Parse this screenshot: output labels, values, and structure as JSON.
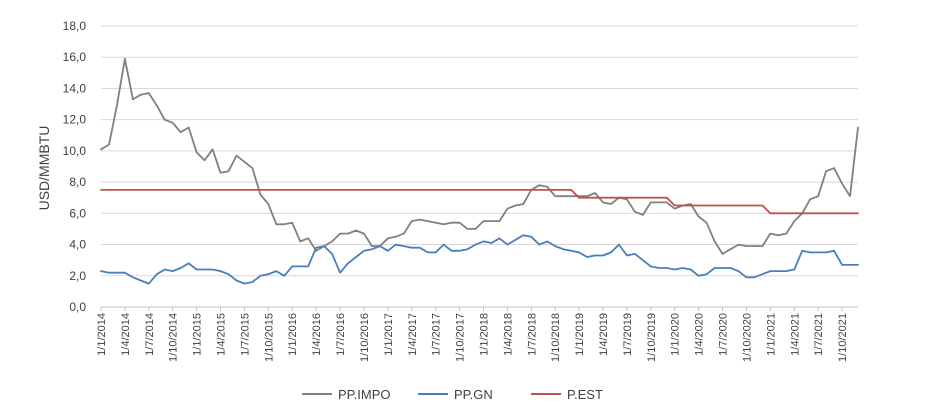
{
  "chart_data": {
    "type": "line",
    "title": "",
    "xlabel": "",
    "ylabel": "USD/MMBTU",
    "ylim": [
      0,
      18
    ],
    "yticks": [
      "0,0",
      "2,0",
      "4,0",
      "6,0",
      "8,0",
      "10,0",
      "12,0",
      "14,0",
      "16,0",
      "18,0"
    ],
    "grid": "horizontal",
    "legend_position": "bottom",
    "x_tick_labels": [
      "1/1/2014",
      "1/4/2014",
      "1/7/2014",
      "1/10/2014",
      "1/1/2015",
      "1/4/2015",
      "1/7/2015",
      "1/10/2015",
      "1/1/2016",
      "1/4/2016",
      "1/7/2016",
      "1/10/2016",
      "1/1/2017",
      "1/4/2017",
      "1/7/2017",
      "1/10/2017",
      "1/1/2018",
      "1/4/2018",
      "1/7/2018",
      "1/10/2018",
      "1/1/2019",
      "1/4/2019",
      "1/7/2019",
      "1/10/2019",
      "1/1/2020",
      "1/4/2020",
      "1/7/2020",
      "1/10/2020",
      "1/1/2021",
      "1/4/2021",
      "1/7/2021",
      "1/10/2021"
    ],
    "series": [
      {
        "name": "PP.IMPO",
        "color": "#808080",
        "values": [
          10.1,
          10.4,
          12.9,
          15.9,
          13.3,
          13.6,
          13.7,
          12.9,
          12.0,
          11.8,
          11.2,
          11.5,
          9.9,
          9.4,
          10.1,
          8.6,
          8.7,
          9.7,
          9.3,
          8.9,
          7.2,
          6.6,
          5.3,
          5.3,
          5.4,
          4.2,
          4.4,
          3.6,
          3.9,
          4.2,
          4.7,
          4.7,
          4.9,
          4.7,
          3.9,
          3.9,
          4.4,
          4.5,
          4.7,
          5.5,
          5.6,
          5.5,
          5.4,
          5.3,
          5.4,
          5.4,
          5.0,
          5.0,
          5.5,
          5.5,
          5.5,
          6.3,
          6.5,
          6.6,
          7.5,
          7.8,
          7.7,
          7.1,
          7.1,
          7.1,
          7.1,
          7.1,
          7.3,
          6.7,
          6.6,
          7.0,
          6.9,
          6.1,
          5.9,
          6.7,
          6.7,
          6.7,
          6.3,
          6.5,
          6.6,
          5.8,
          5.4,
          4.2,
          3.4,
          3.7,
          4.0,
          3.9,
          3.9,
          3.9,
          4.7,
          4.6,
          4.7,
          5.5,
          6.0,
          6.9,
          7.1,
          8.7,
          8.9,
          7.9,
          7.1,
          11.5
        ]
      },
      {
        "name": "PP.GN",
        "color": "#4a7ebb",
        "values": [
          2.3,
          2.2,
          2.2,
          2.2,
          1.9,
          1.7,
          1.5,
          2.1,
          2.4,
          2.3,
          2.5,
          2.8,
          2.4,
          2.4,
          2.4,
          2.3,
          2.1,
          1.7,
          1.5,
          1.6,
          2.0,
          2.1,
          2.3,
          2.0,
          2.6,
          2.6,
          2.6,
          3.8,
          3.9,
          3.4,
          2.2,
          2.8,
          3.2,
          3.6,
          3.7,
          3.9,
          3.6,
          4.0,
          3.9,
          3.8,
          3.8,
          3.5,
          3.5,
          4.0,
          3.6,
          3.6,
          3.7,
          4.0,
          4.2,
          4.1,
          4.4,
          4.0,
          4.3,
          4.6,
          4.5,
          4.0,
          4.2,
          3.9,
          3.7,
          3.6,
          3.5,
          3.2,
          3.3,
          3.3,
          3.5,
          4.0,
          3.3,
          3.4,
          3.0,
          2.6,
          2.5,
          2.5,
          2.4,
          2.5,
          2.4,
          2.0,
          2.1,
          2.5,
          2.5,
          2.5,
          2.3,
          1.9,
          1.9,
          2.1,
          2.3,
          2.3,
          2.3,
          2.4,
          3.6,
          3.5,
          3.5,
          3.5,
          3.6,
          2.7,
          2.7,
          2.7
        ]
      },
      {
        "name": "P.EST",
        "color": "#c0504d",
        "values": [
          7.5,
          7.5,
          7.5,
          7.5,
          7.5,
          7.5,
          7.5,
          7.5,
          7.5,
          7.5,
          7.5,
          7.5,
          7.5,
          7.5,
          7.5,
          7.5,
          7.5,
          7.5,
          7.5,
          7.5,
          7.5,
          7.5,
          7.5,
          7.5,
          7.5,
          7.5,
          7.5,
          7.5,
          7.5,
          7.5,
          7.5,
          7.5,
          7.5,
          7.5,
          7.5,
          7.5,
          7.5,
          7.5,
          7.5,
          7.5,
          7.5,
          7.5,
          7.5,
          7.5,
          7.5,
          7.5,
          7.5,
          7.5,
          7.5,
          7.5,
          7.5,
          7.5,
          7.5,
          7.5,
          7.5,
          7.5,
          7.5,
          7.5,
          7.5,
          7.5,
          7.0,
          7.0,
          7.0,
          7.0,
          7.0,
          7.0,
          7.0,
          7.0,
          7.0,
          7.0,
          7.0,
          7.0,
          6.5,
          6.5,
          6.5,
          6.5,
          6.5,
          6.5,
          6.5,
          6.5,
          6.5,
          6.5,
          6.5,
          6.5,
          6.0,
          6.0,
          6.0,
          6.0,
          6.0,
          6.0,
          6.0,
          6.0,
          6.0,
          6.0,
          6.0,
          6.0
        ]
      }
    ]
  }
}
